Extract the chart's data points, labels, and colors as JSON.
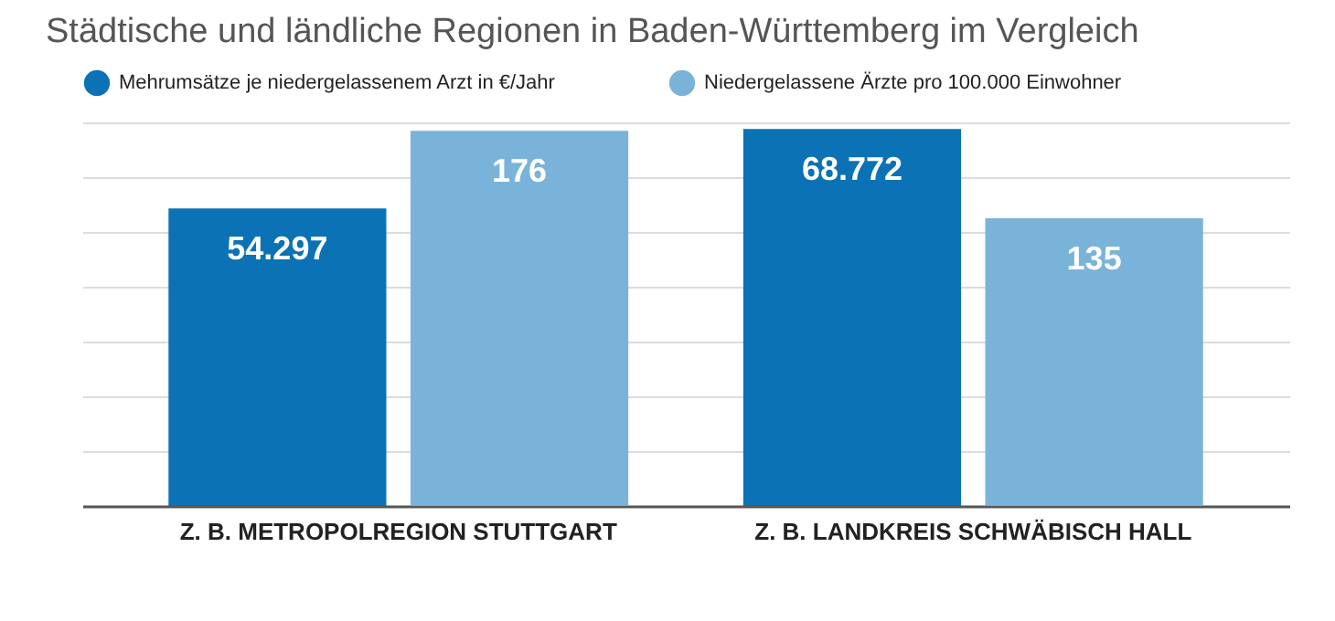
{
  "chart_data": {
    "type": "bar",
    "title": "Städtische und ländliche Regionen in Baden-Württemberg im Vergleich",
    "categories": [
      "Z. B. METROPOLREGION STUTTGART",
      "Z. B. LANDKREIS SCHWÄBISCH HALL"
    ],
    "series": [
      {
        "name": "Mehrumsätze je niedergelassenem Arzt in €/Jahr",
        "color": "#0a72b5",
        "values": [
          54297,
          68772
        ],
        "value_labels": [
          "54.297",
          "68.772"
        ]
      },
      {
        "name": "Niedergelassene Ärzte pro 100.000 Einwohner",
        "color": "#7ab3d9",
        "values": [
          176,
          135
        ],
        "value_labels": [
          "176",
          "135"
        ],
        "axis": "y2"
      }
    ],
    "grid": "y",
    "legend": "top left"
  }
}
